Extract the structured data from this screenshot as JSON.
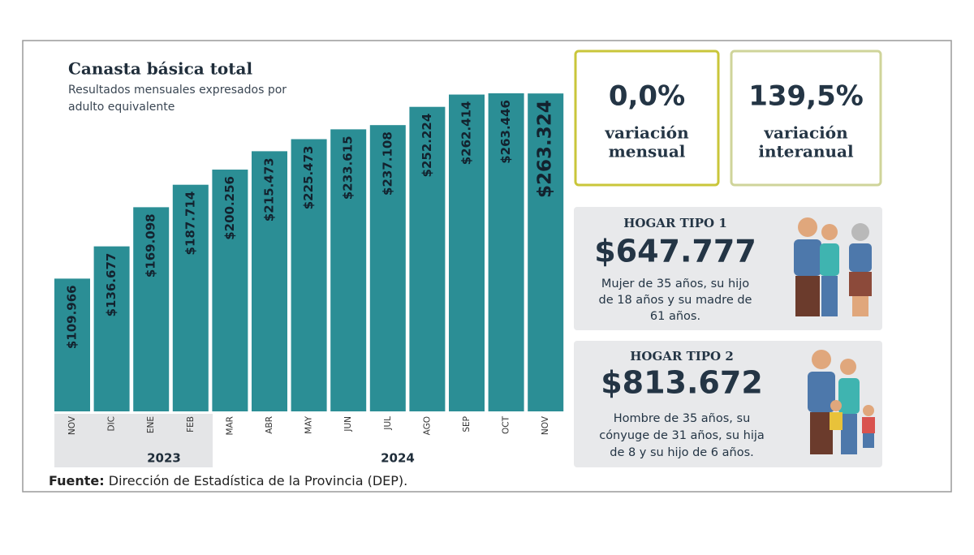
{
  "chart_data": {
    "type": "bar",
    "title": "Canasta básica total",
    "subtitle": [
      "Resultados mensuales expresados por",
      "adulto equivalente"
    ],
    "categories": [
      "NOV",
      "DIC",
      "ENE",
      "FEB",
      "MAR",
      "ABR",
      "MAY",
      "JUN",
      "JUL",
      "AGO",
      "SEP",
      "OCT",
      "NOV"
    ],
    "values": [
      109966,
      136677,
      169098,
      187714,
      200256,
      215473,
      225473,
      233615,
      237108,
      252224,
      262414,
      263446,
      263324
    ],
    "value_labels": [
      "$109.966",
      "$136.677",
      "$169.098",
      "$187.714",
      "$200.256",
      "$215.473",
      "$225.473",
      "$233.615",
      "$237.108",
      "$252.224",
      "$262.414",
      "$263.446",
      "$263.324"
    ],
    "color": "#2b8e95",
    "year_labels": [
      "2023",
      "2024"
    ]
  },
  "cards": [
    {
      "value": "0,0%",
      "label": [
        "variación",
        "mensual"
      ]
    },
    {
      "value": "139,5%",
      "label": [
        "variación",
        "interanual"
      ]
    }
  ],
  "households": [
    {
      "title": "HOGAR TIPO 1",
      "amount": "$647.777",
      "description": [
        "Mujer de 35 años, su hijo",
        "de 18 años y su madre de",
        "61 años."
      ]
    },
    {
      "title": "HOGAR TIPO 2",
      "amount": "$813.672",
      "description": [
        "Hombre de 35 años, su",
        "cónyuge de 31 años, su hija",
        "de 8 y su hijo de 6 años."
      ]
    }
  ],
  "source": {
    "label": "Fuente:",
    "text": "Dirección de Estadística de la Provincia (DEP)."
  }
}
